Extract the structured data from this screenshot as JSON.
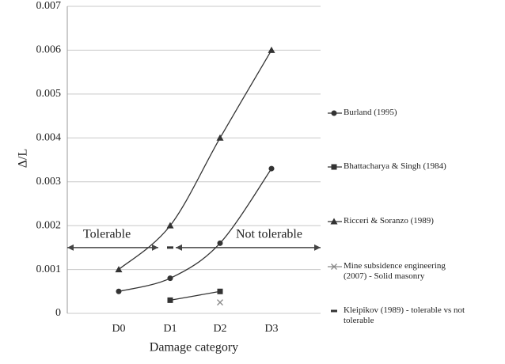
{
  "chart_data": {
    "type": "line",
    "y_label": "Δ/L",
    "x_label": "Damage category",
    "categories": [
      "D0",
      "D1",
      "D2",
      "D3"
    ],
    "ylim": [
      0,
      0.007
    ],
    "yticks": [
      0,
      0.001,
      0.002,
      0.003,
      0.004,
      0.005,
      0.006,
      0.007
    ],
    "grid": true,
    "legend": "right",
    "annotations": [
      "Tolerable",
      "Not tolerable"
    ],
    "series": [
      {
        "name": "Burland (1995)",
        "color": "#333333",
        "marker": "circle",
        "values": [
          0.0005,
          0.0008,
          0.0016,
          0.0033
        ]
      },
      {
        "name": "Bhattacharya & Singh (1984)",
        "color": "#333333",
        "marker": "square",
        "values": [
          null,
          0.0003,
          0.0005,
          null
        ]
      },
      {
        "name": "Ricceri & Soranzo (1989)",
        "color": "#333333",
        "marker": "triangle",
        "values": [
          0.001,
          0.002,
          0.004,
          0.006
        ]
      },
      {
        "name": "Mine subsidence engineering (2007) - Solid masonry",
        "color": "#888888",
        "marker": "x",
        "values": [
          null,
          null,
          0.00025,
          null
        ]
      },
      {
        "name": "Kleipikov (1989) - tolerable vs not tolerable",
        "color": "#333333",
        "marker": "dash",
        "values": [
          null,
          0.0015,
          null,
          null
        ]
      }
    ]
  }
}
